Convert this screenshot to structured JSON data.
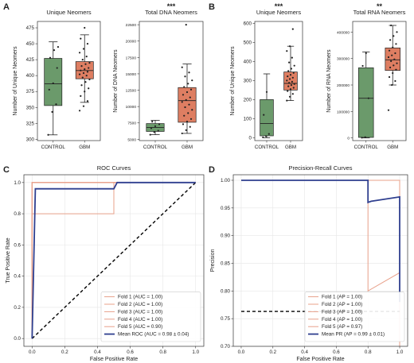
{
  "colors": {
    "control": "#6b9a6b",
    "gbm": "#de7e62",
    "fold": "#e8a08a",
    "mean": "#2f3f8f",
    "chance": "#000000",
    "dot": "#222222"
  },
  "chart_data": [
    {
      "id": "A1",
      "panel": "A",
      "type": "box",
      "title": "Unique Neomers",
      "significance": "",
      "ylabel": "Number of Unique Neomers",
      "categories": [
        "CONTROL",
        "GBM"
      ],
      "ylim": [
        298,
        485
      ],
      "yticks": [
        300,
        325,
        350,
        375,
        400,
        425,
        450,
        475
      ],
      "boxes": [
        {
          "category": "CONTROL",
          "whisker_low": 307,
          "q1": 353,
          "median": 387,
          "q3": 427,
          "whisker_high": 453
        },
        {
          "category": "GBM",
          "whisker_low": 358,
          "q1": 395,
          "median": 408,
          "q3": 422,
          "whisker_high": 464
        }
      ],
      "points": [
        {
          "category": "CONTROL",
          "values": [
            307,
            343,
            355,
            378,
            388,
            412,
            428,
            440,
            445
          ]
        },
        {
          "category": "GBM",
          "values": [
            345,
            352,
            360,
            368,
            375,
            380,
            385,
            390,
            394,
            397,
            400,
            402,
            404,
            406,
            408,
            410,
            412,
            415,
            418,
            420,
            425,
            430,
            436,
            442,
            450,
            458,
            475
          ]
        }
      ]
    },
    {
      "id": "A2",
      "panel": "A",
      "type": "box",
      "title": "Total DNA Neomers",
      "significance": "***",
      "ylabel": "Number of DNA Neomers",
      "categories": [
        "CONTROL",
        "GBM"
      ],
      "ylim": [
        4800,
        23000
      ],
      "yticks": [
        5000,
        7500,
        10000,
        12500,
        15000,
        17500,
        20000,
        22500
      ],
      "boxes": [
        {
          "category": "CONTROL",
          "whisker_low": 5700,
          "q1": 6200,
          "median": 6800,
          "q3": 7400,
          "whisker_high": 7900
        },
        {
          "category": "GBM",
          "whisker_low": 5900,
          "q1": 7600,
          "median": 10900,
          "q3": 12900,
          "whisker_high": 16500
        }
      ],
      "points": [
        {
          "category": "CONTROL",
          "values": [
            5700,
            6100,
            6300,
            6700,
            7000,
            7300,
            7700
          ]
        },
        {
          "category": "GBM",
          "values": [
            5900,
            6400,
            6900,
            7300,
            7700,
            8100,
            8600,
            9000,
            9500,
            9900,
            10300,
            10700,
            11000,
            11400,
            11800,
            12200,
            12600,
            13000,
            13500,
            14000,
            14600,
            15200,
            16000,
            22500
          ]
        }
      ]
    },
    {
      "id": "B1",
      "panel": "B",
      "type": "box",
      "title": "Unique Neomers",
      "significance": "***",
      "ylabel": "Number of Unique Neomers",
      "categories": [
        "CONTROL",
        "GBM"
      ],
      "ylim": [
        -15,
        610
      ],
      "yticks": [
        0,
        100,
        200,
        300,
        400,
        500,
        600
      ],
      "boxes": [
        {
          "category": "CONTROL",
          "whisker_low": 0,
          "q1": 10,
          "median": 75,
          "q3": 200,
          "whisker_high": 335
        },
        {
          "category": "GBM",
          "whisker_low": 195,
          "q1": 250,
          "median": 285,
          "q3": 345,
          "whisker_high": 480
        }
      ],
      "points": [
        {
          "category": "CONTROL",
          "values": [
            2,
            8,
            20,
            120,
            240
          ]
        },
        {
          "category": "GBM",
          "values": [
            195,
            215,
            230,
            245,
            255,
            262,
            270,
            276,
            282,
            288,
            294,
            300,
            308,
            315,
            322,
            330,
            340,
            350,
            362,
            378,
            395,
            420,
            455,
            480,
            570
          ]
        }
      ]
    },
    {
      "id": "B2",
      "panel": "B",
      "type": "box",
      "title": "Total RNA Neomers",
      "significance": "**",
      "ylabel": "Number of RNA Neomers",
      "categories": [
        "CONTROL",
        "GBM"
      ],
      "ylim": [
        -10000,
        440000
      ],
      "yticks": [
        0,
        100000,
        200000,
        300000,
        400000
      ],
      "boxes": [
        {
          "category": "CONTROL",
          "whisker_low": 0,
          "q1": 2000,
          "median": 150000,
          "q3": 265000,
          "whisker_high": 325000
        },
        {
          "category": "GBM",
          "whisker_low": 200000,
          "q1": 255000,
          "median": 295000,
          "q3": 340000,
          "whisker_high": 425000
        }
      ],
      "points": [
        {
          "category": "CONTROL",
          "values": [
            1000,
            3000,
            150000,
            272000,
            320000
          ]
        },
        {
          "category": "GBM",
          "values": [
            105000,
            200000,
            215000,
            230000,
            245000,
            258000,
            266000,
            274000,
            282000,
            290000,
            297000,
            305000,
            312000,
            320000,
            330000,
            342000,
            355000,
            370000,
            385000,
            400000,
            425000
          ]
        }
      ]
    },
    {
      "id": "C",
      "panel": "C",
      "type": "line",
      "title": "ROC Curves",
      "xlabel": "False Positive Rate",
      "ylabel": "True Positive Rate",
      "xlim": [
        -0.05,
        1.05
      ],
      "ylim": [
        -0.05,
        1.05
      ],
      "xticks": [
        0.0,
        0.2,
        0.4,
        0.6,
        0.8,
        1.0
      ],
      "yticks": [
        0.0,
        0.2,
        0.4,
        0.6,
        0.8,
        1.0
      ],
      "grid": true,
      "legend_position": "lower-right",
      "series": [
        {
          "name": "Fold 1 (AUC = 1.00)",
          "style": "fold",
          "x": [
            0,
            0,
            1
          ],
          "y": [
            0,
            1,
            1
          ]
        },
        {
          "name": "Fold 2 (AUC = 1.00)",
          "style": "fold",
          "x": [
            0,
            0,
            1
          ],
          "y": [
            0,
            1,
            1
          ]
        },
        {
          "name": "Fold 3 (AUC = 1.00)",
          "style": "fold",
          "x": [
            0,
            0,
            1
          ],
          "y": [
            0,
            1,
            1
          ]
        },
        {
          "name": "Fold 4 (AUC = 1.00)",
          "style": "fold",
          "x": [
            0,
            0,
            1
          ],
          "y": [
            0,
            1,
            1
          ]
        },
        {
          "name": "Fold 5 (AUC = 0.90)",
          "style": "fold",
          "x": [
            0,
            0,
            0.5,
            0.5,
            1
          ],
          "y": [
            0,
            0.8,
            0.8,
            1,
            1
          ]
        },
        {
          "name": "Mean ROC (AUC = 0.98 ± 0.04)",
          "style": "mean",
          "x": [
            0,
            0.02,
            0.5,
            0.52,
            1
          ],
          "y": [
            0,
            0.96,
            0.96,
            1,
            1
          ]
        },
        {
          "name": "",
          "style": "chance",
          "x": [
            0,
            1
          ],
          "y": [
            0,
            1
          ]
        }
      ]
    },
    {
      "id": "D",
      "panel": "D",
      "type": "line",
      "title": "Precision-Recall Curves",
      "xlabel": "False Positive Rate",
      "ylabel": "Precision",
      "xlim": [
        -0.05,
        1.05
      ],
      "ylim": [
        0.7,
        1.01
      ],
      "xticks": [
        0.0,
        0.2,
        0.4,
        0.6,
        0.8,
        1.0
      ],
      "yticks": [
        0.7,
        0.75,
        0.8,
        0.85,
        0.9,
        0.95,
        1.0
      ],
      "grid": true,
      "legend_position": "lower-right",
      "series": [
        {
          "name": "Fold 1 (AP = 1.00)",
          "style": "fold",
          "x": [
            0,
            1,
            1
          ],
          "y": [
            1,
            1,
            0.7
          ]
        },
        {
          "name": "Fold 2 (AP = 1.00)",
          "style": "fold",
          "x": [
            0,
            1,
            1
          ],
          "y": [
            1,
            1,
            0.7
          ]
        },
        {
          "name": "Fold 3 (AP = 1.00)",
          "style": "fold",
          "x": [
            0,
            1,
            1
          ],
          "y": [
            1,
            1,
            0.7
          ]
        },
        {
          "name": "Fold 4 (AP = 1.00)",
          "style": "fold",
          "x": [
            0,
            1,
            1
          ],
          "y": [
            1,
            1,
            0.7
          ]
        },
        {
          "name": "Fold 5 (AP = 0.97)",
          "style": "fold",
          "x": [
            0,
            0.8,
            0.8,
            1,
            1
          ],
          "y": [
            1,
            1,
            0.8,
            0.833,
            0.7
          ]
        },
        {
          "name": "Mean PR (AP = 0.99 ± 0.01)",
          "style": "mean",
          "x": [
            0,
            0.8,
            0.8,
            0.82,
            1,
            1
          ],
          "y": [
            1,
            1,
            0.96,
            0.962,
            0.97,
            0.78
          ]
        },
        {
          "name": "",
          "style": "chance",
          "x": [
            0,
            1
          ],
          "y": [
            0.763,
            0.763
          ]
        }
      ]
    }
  ]
}
